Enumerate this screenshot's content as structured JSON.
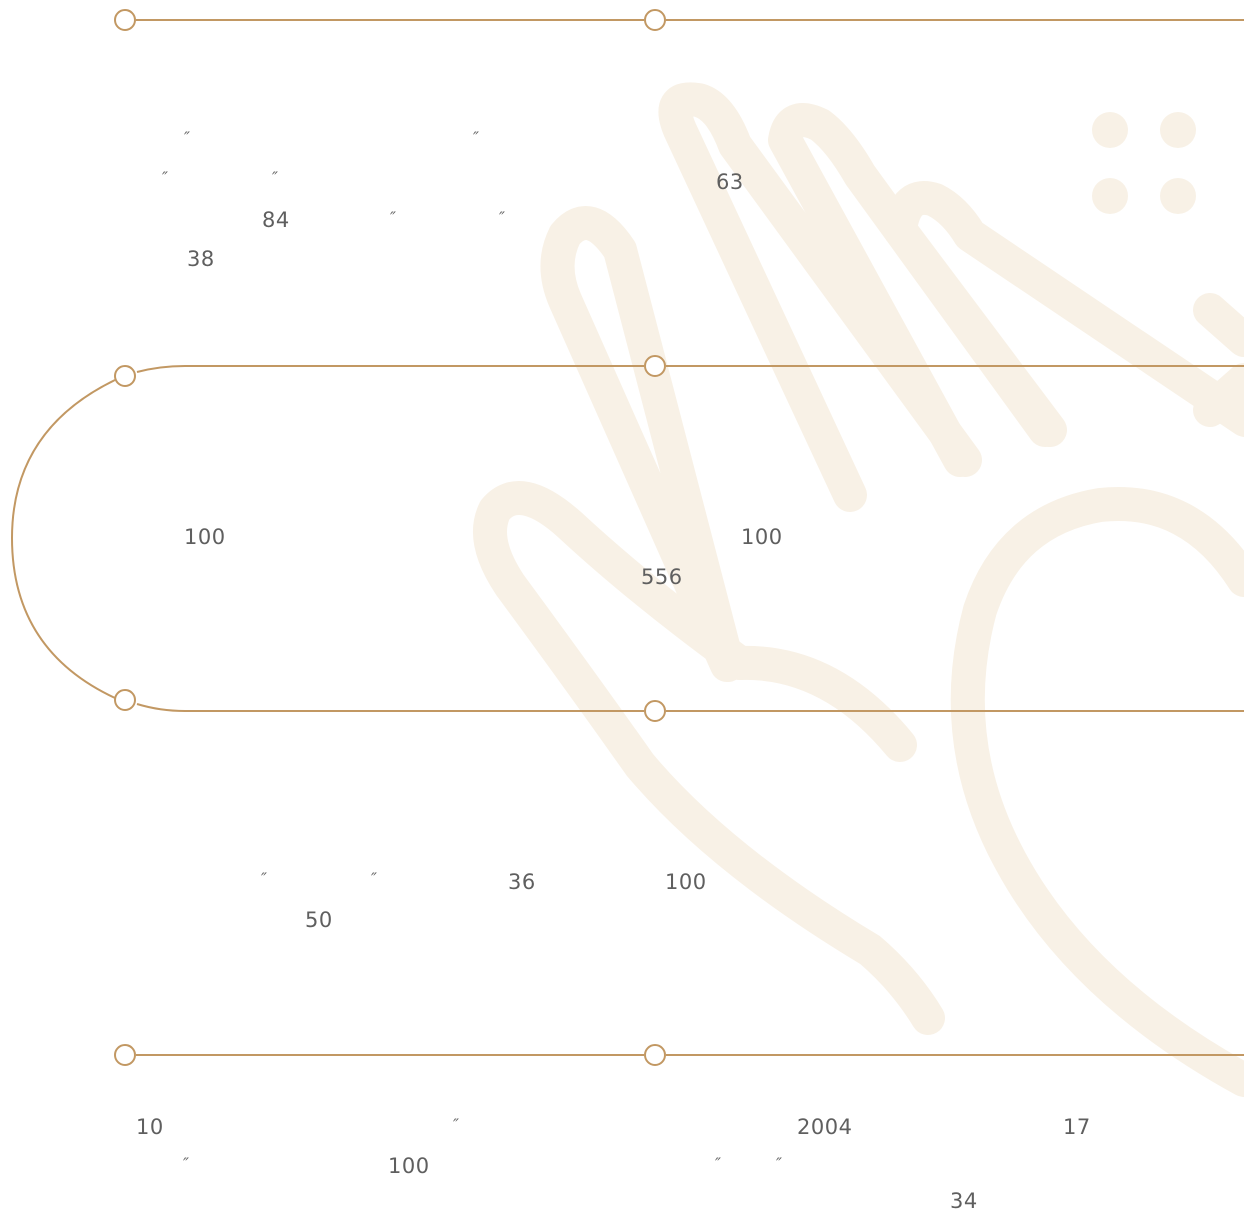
{
  "colors": {
    "accent": "#c29863",
    "watermark": "#f8f1e6",
    "text": "#5f5f5f"
  },
  "watermark_icon": "waving-hand-icon",
  "quote_mark": "″",
  "timeline": {
    "section1": {
      "numbers": [
        "63",
        "84",
        "38"
      ]
    },
    "section2": {
      "numbers": [
        "100",
        "100",
        "556"
      ]
    },
    "section3": {
      "numbers": [
        "36",
        "100",
        "50"
      ]
    },
    "section4": {
      "numbers": [
        "10",
        "2004",
        "17",
        "100",
        "34"
      ]
    }
  }
}
